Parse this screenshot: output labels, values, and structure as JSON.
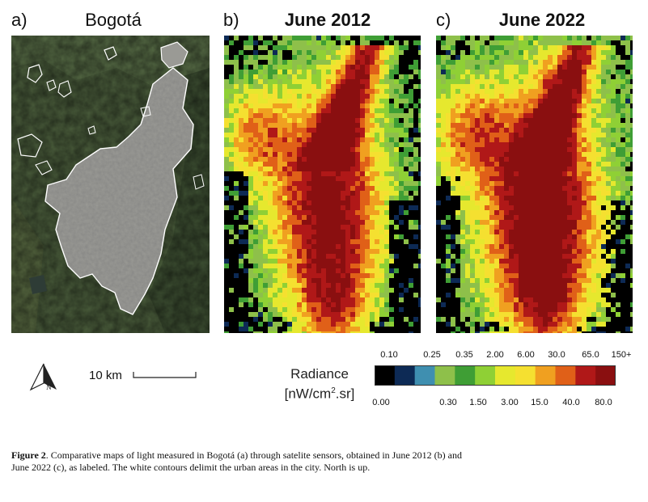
{
  "panels": {
    "a": {
      "label": "a)",
      "title": "Bogotá"
    },
    "b": {
      "label": "b)",
      "title": "June 2012"
    },
    "c": {
      "label": "c)",
      "title": "June 2022"
    }
  },
  "scale_bar": {
    "label": "10 km"
  },
  "north_arrow": {
    "label": "N"
  },
  "legend": {
    "title_line1": "Radiance",
    "title_line2_pre": "[nW/cm",
    "title_line2_sup": "2",
    "title_line2_post": ".sr]",
    "upper_ticks": [
      "0.10",
      "0.25",
      "0.35",
      "2.00",
      "6.00",
      "30.0",
      "65.0",
      "150+"
    ],
    "lower_ticks": [
      "0.00",
      "0.30",
      "1.50",
      "3.00",
      "15.0",
      "40.0",
      "80.0"
    ],
    "colors": [
      "#000000",
      "#0d2a55",
      "#3f8fb0",
      "#8ec04a",
      "#3f9e35",
      "#8fd035",
      "#e6e82e",
      "#f5e030",
      "#f0a020",
      "#e06018",
      "#b01818",
      "#8a0f10"
    ]
  },
  "caption": {
    "label": "Figure 2",
    "text": ". Comparative maps of light measured in Bogotá (a) through satelite sensors, obtained in June 2012 (b) and June 2022 (c), as labeled. The white contours delimit the urban areas in the city. North is up."
  }
}
